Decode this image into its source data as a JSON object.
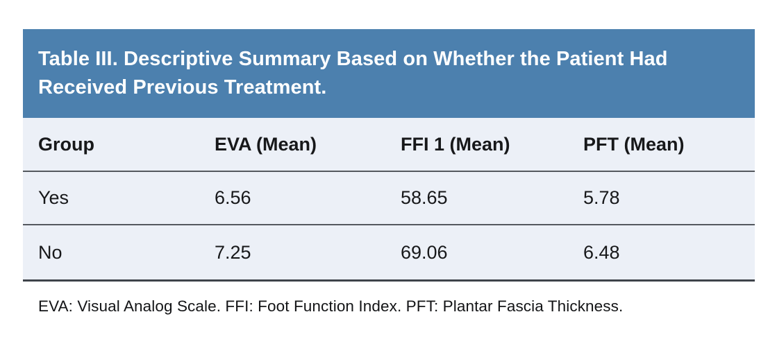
{
  "table": {
    "title": "Table III. Descriptive Summary Based on Whether the Patient Had Received Previous Treatment.",
    "columns": [
      "Group",
      "EVA (Mean)",
      "FFI 1 (Mean)",
      "PFT (Mean)"
    ],
    "rows": [
      [
        "Yes",
        "6.56",
        "58.65",
        "5.78"
      ],
      [
        "No",
        "7.25",
        "69.06",
        "6.48"
      ]
    ],
    "footnote": "EVA: Visual Analog Scale. FFI: Foot Function Index. PFT: Plantar Fascia Thickness."
  },
  "chart_data": {
    "type": "table",
    "title": "Table III. Descriptive Summary Based on Whether the Patient Had Received Previous Treatment.",
    "categories": [
      "Yes",
      "No"
    ],
    "series": [
      {
        "name": "EVA (Mean)",
        "values": [
          6.56,
          7.25
        ]
      },
      {
        "name": "FFI 1 (Mean)",
        "values": [
          58.65,
          69.06
        ]
      },
      {
        "name": "PFT (Mean)",
        "values": [
          5.78,
          6.48
        ]
      }
    ]
  },
  "colors": {
    "title_bar_bg": "#4C80AE",
    "title_text": "#FFFFFF",
    "table_bg": "#ECF0F7",
    "rule": "#54585E",
    "bottom_rule": "#3E434A",
    "body_text": "#17181A"
  }
}
